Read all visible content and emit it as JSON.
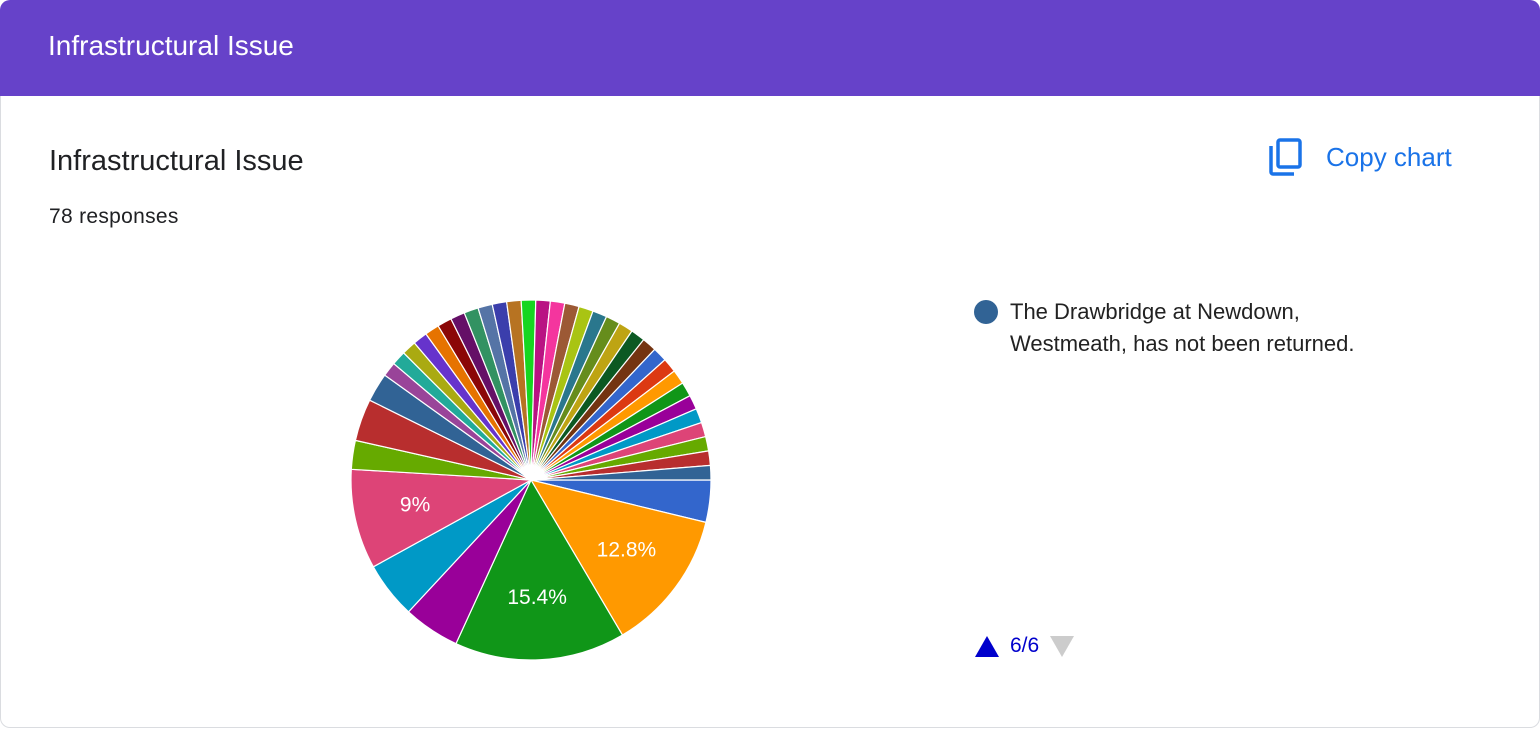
{
  "header": {
    "title": "Infrastructural Issue"
  },
  "card": {
    "title": "Infrastructural Issue",
    "responses": "78 responses",
    "copy_button": "Copy chart",
    "legend_page": "6/6"
  },
  "chart_data": {
    "type": "pie",
    "categories": [
      null,
      null,
      null,
      null,
      null,
      null,
      null,
      null,
      null,
      null,
      null,
      null,
      null,
      null,
      null,
      null,
      null,
      null,
      null,
      null,
      null,
      null,
      null,
      null,
      null,
      null,
      null,
      null,
      null,
      null,
      null,
      null,
      null,
      null,
      null,
      null,
      null,
      null,
      null,
      "The Drawbridge at Newdown, Westmeath, has not been returned."
    ],
    "values": [
      3.8,
      12.8,
      15.4,
      5.1,
      5.1,
      9,
      2.6,
      3.8,
      2.6,
      1.3,
      1.3,
      1.3,
      1.3,
      1.3,
      1.3,
      1.3,
      1.3,
      1.3,
      1.3,
      1.3,
      1.3,
      1.3,
      1.3,
      1.3,
      1.3,
      1.3,
      1.3,
      1.3,
      1.3,
      1.3,
      1.3,
      1.3,
      1.3,
      1.3,
      1.3,
      1.3,
      1.3,
      1.3,
      1.3,
      1.3
    ],
    "value_labels": [
      null,
      "12.8%",
      "15.4%",
      null,
      null,
      "9%",
      null,
      null,
      null,
      null,
      null,
      null,
      null,
      null,
      null,
      null,
      null,
      null,
      null,
      null,
      null,
      null,
      null,
      null,
      null,
      null,
      null,
      null,
      null,
      null,
      null,
      null,
      null,
      null,
      null,
      null,
      null,
      null,
      null,
      null
    ],
    "colors": [
      "#3366cc",
      "#ff9900",
      "#109618",
      "#990099",
      "#0099c6",
      "#dd4477",
      "#66aa00",
      "#b82e2e",
      "#316395",
      "#994499",
      "#22aa99",
      "#aaaa11",
      "#6633cc",
      "#e67300",
      "#8b0707",
      "#651067",
      "#329262",
      "#5574a6",
      "#3b3eac",
      "#b77322",
      "#16d620",
      "#b91383",
      "#f4359e",
      "#9c5935",
      "#a9c413",
      "#2a778d",
      "#668d1c",
      "#bea413",
      "#0c5922",
      "#743411",
      "#3366cc",
      "#dc3912",
      "#ff9900",
      "#109618",
      "#990099",
      "#0099c6",
      "#dd4477",
      "#66aa00",
      "#b82e2e",
      "#316395"
    ]
  }
}
